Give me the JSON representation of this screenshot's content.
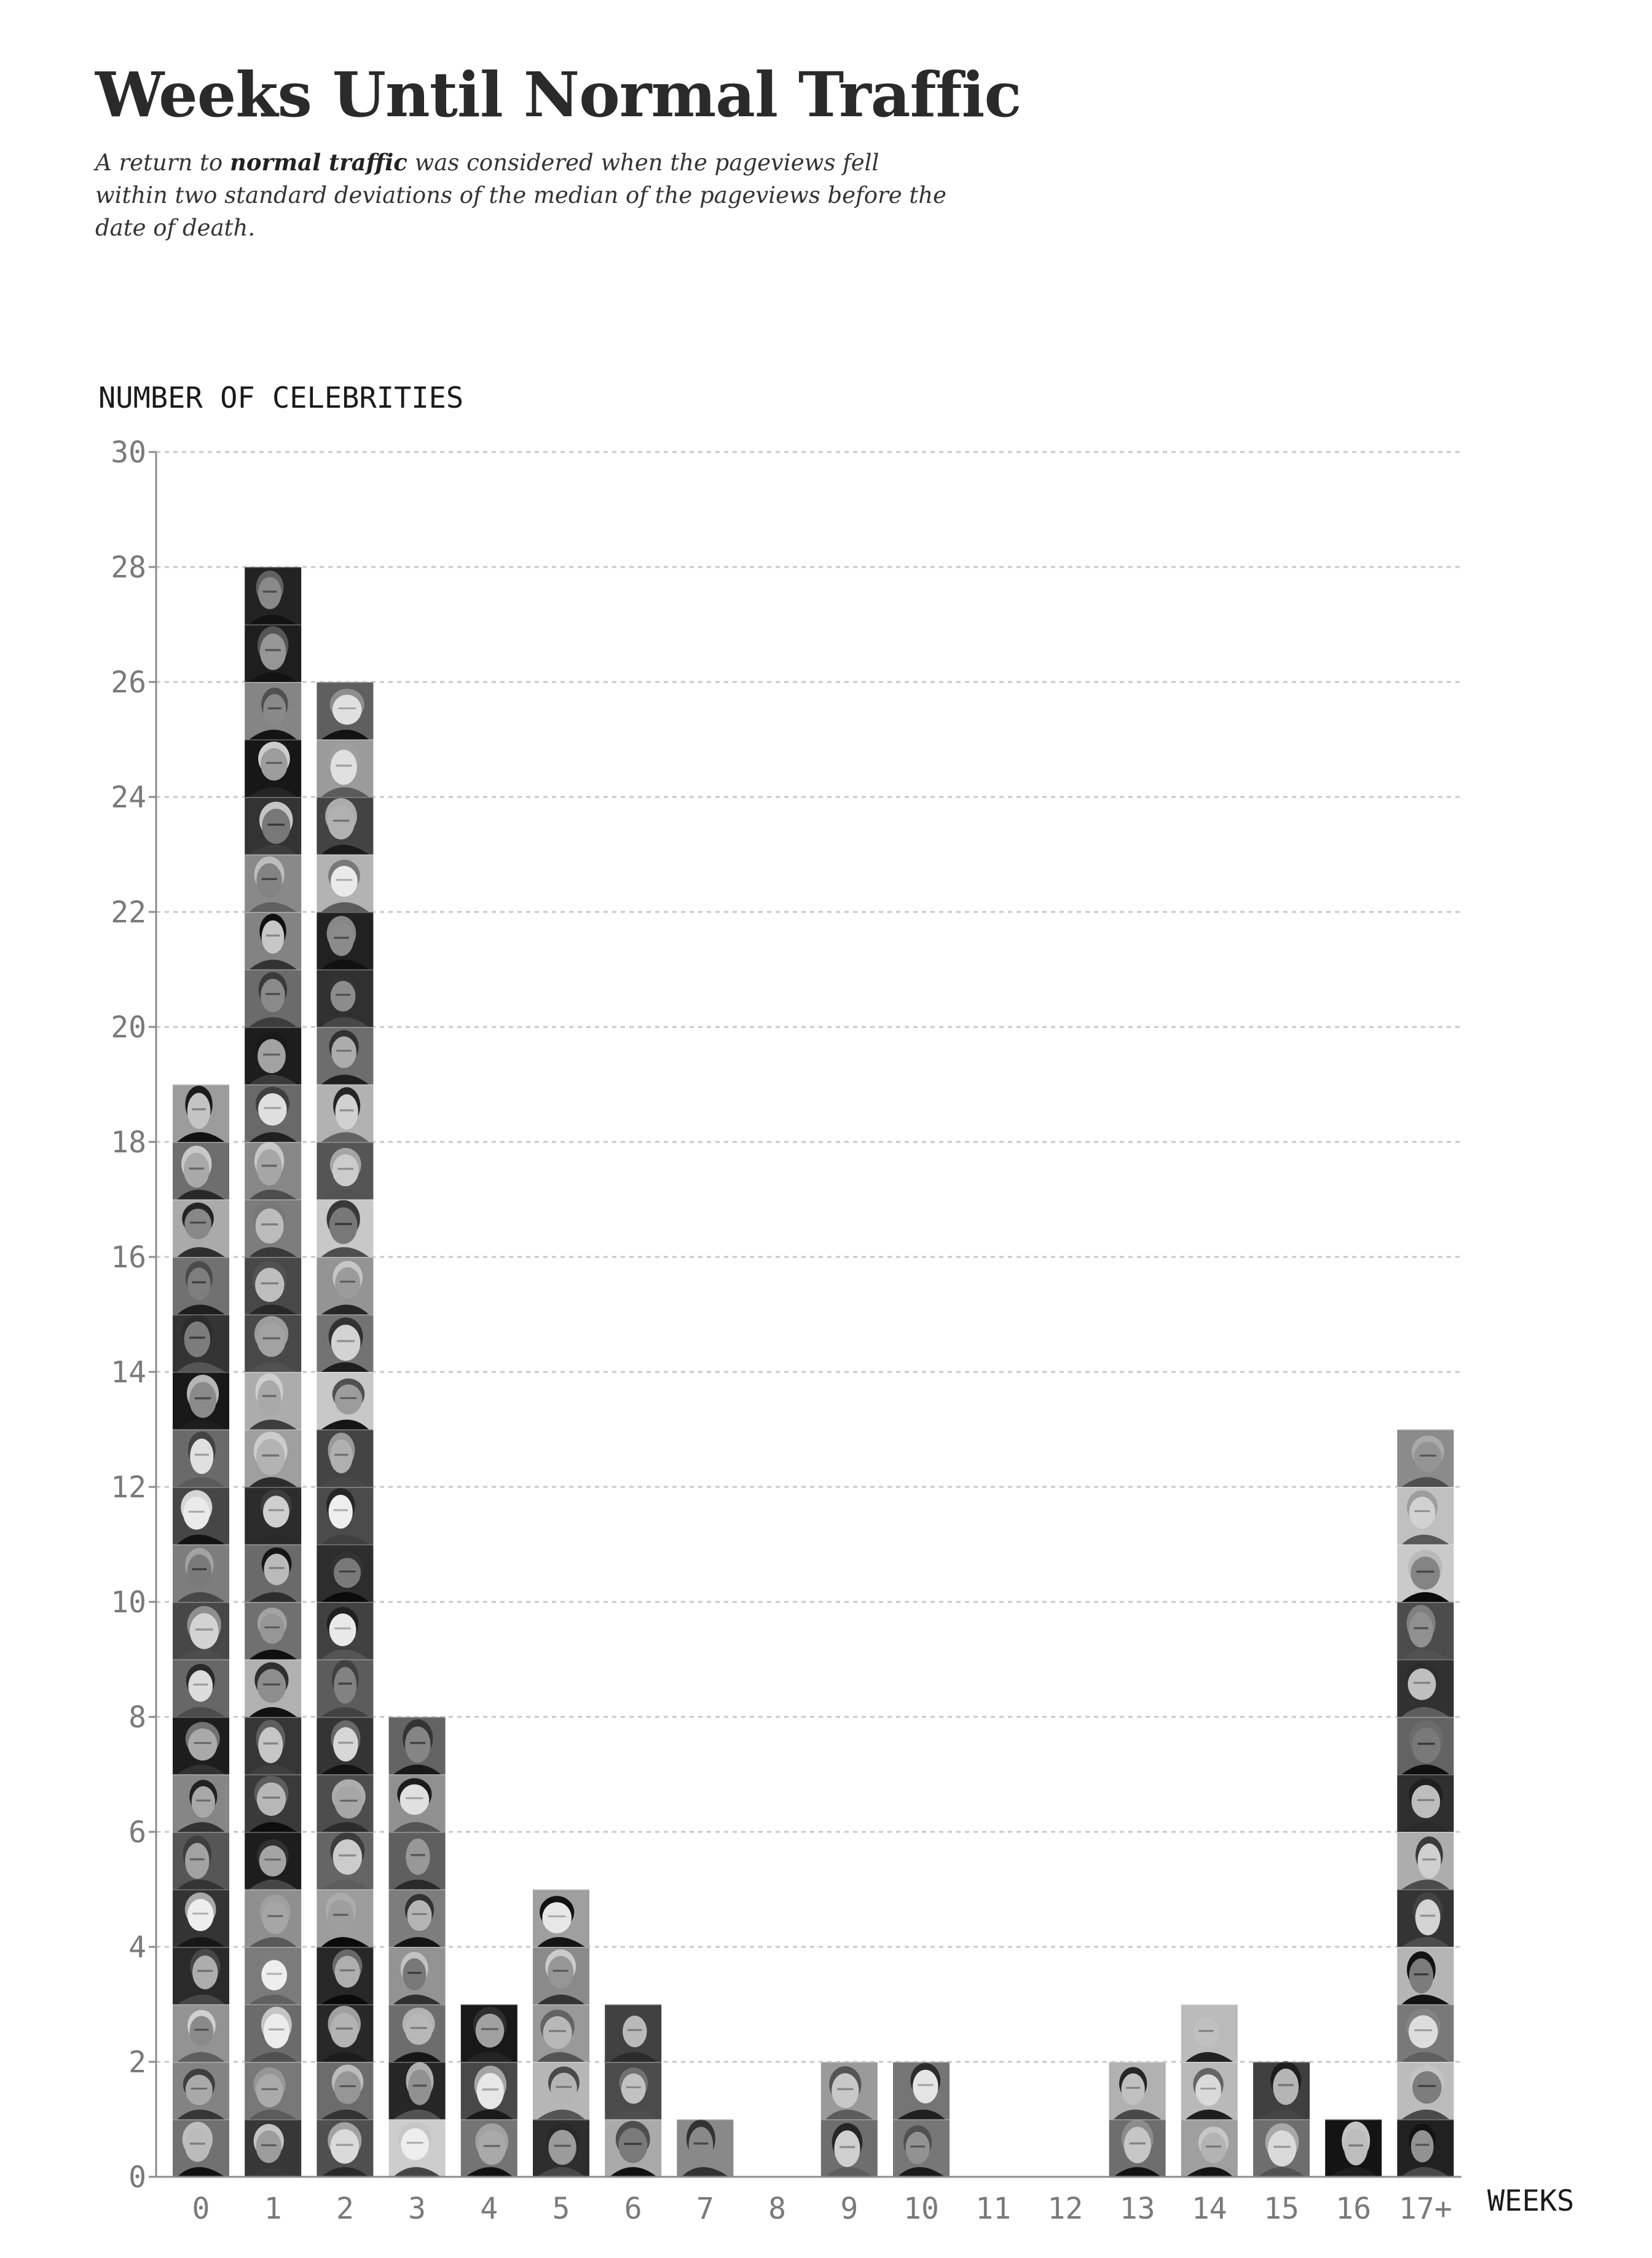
{
  "title": "Weeks Until Normal Traffic",
  "subtitle": {
    "pre": "A return to ",
    "bold": "normal traffic",
    "post": " was considered when the pageviews fell within two standard deviations of the median of the pageviews before the date of death."
  },
  "chart_data": {
    "type": "bar",
    "title": "Weeks Until Normal Traffic",
    "xlabel": "WEEKS",
    "ylabel": "NUMBER OF CELEBRITIES",
    "categories": [
      "0",
      "1",
      "2",
      "3",
      "4",
      "5",
      "6",
      "7",
      "8",
      "9",
      "10",
      "11",
      "12",
      "13",
      "14",
      "15",
      "16",
      "17+"
    ],
    "values": [
      19,
      28,
      26,
      8,
      3,
      5,
      3,
      1,
      0,
      2,
      2,
      0,
      0,
      2,
      3,
      2,
      1,
      13
    ],
    "yticks": [
      0,
      2,
      4,
      6,
      8,
      10,
      12,
      14,
      16,
      18,
      20,
      22,
      24,
      26,
      28,
      30
    ],
    "ylim": [
      0,
      30
    ],
    "grid": true,
    "bar_units": "each stacked tile represents one celebrity portrait"
  },
  "colors": {
    "text": "#2a2a2a",
    "axis": "#8c8c8c",
    "grid": "#c8c8c8",
    "tick_label": "#7a7a7a"
  }
}
